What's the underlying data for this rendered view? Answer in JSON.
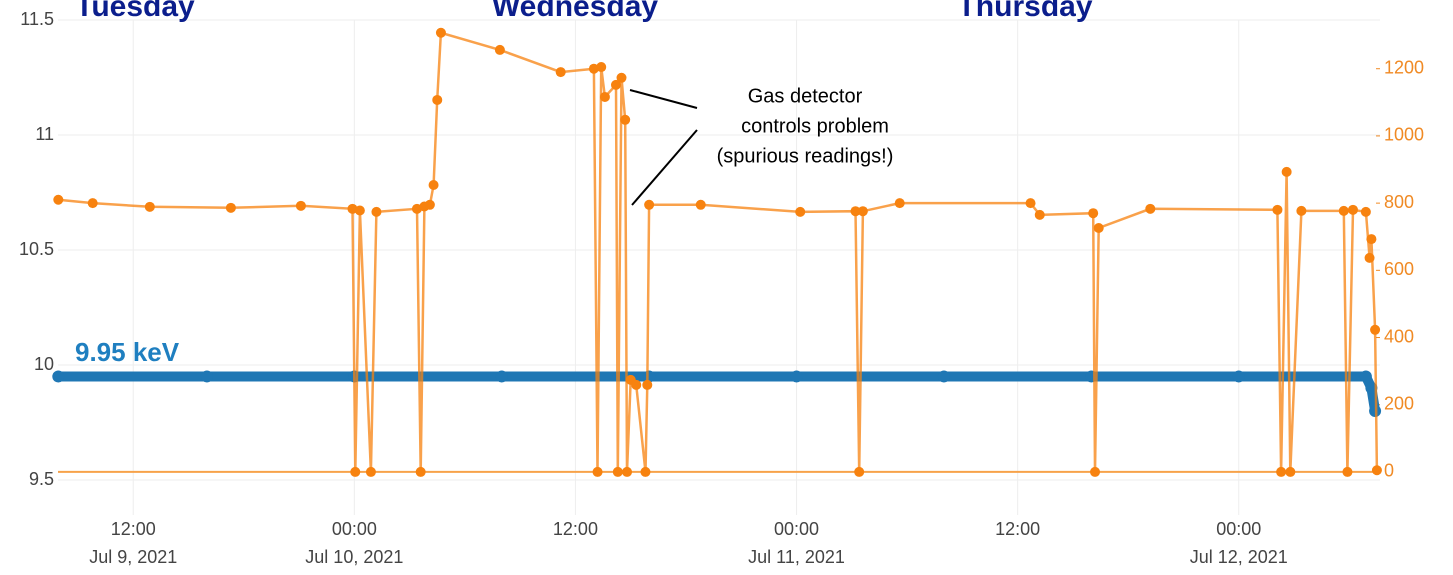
{
  "chart_data": {
    "type": "line",
    "xlim": [
      "2021-07-09 07:55",
      "2021-07-12 07:40"
    ],
    "xticks": [
      {
        "value": "2021-07-09 12:00",
        "label": [
          "12:00",
          "Jul 9, 2021"
        ]
      },
      {
        "value": "2021-07-10 00:00",
        "label": [
          "00:00",
          "Jul 10, 2021"
        ]
      },
      {
        "value": "2021-07-10 12:00",
        "label": [
          "12:00"
        ]
      },
      {
        "value": "2021-07-11 00:00",
        "label": [
          "00:00",
          "Jul 11, 2021"
        ]
      },
      {
        "value": "2021-07-11 12:00",
        "label": [
          "12:00"
        ]
      },
      {
        "value": "2021-07-12 00:00",
        "label": [
          "00:00",
          "Jul 12, 2021"
        ]
      }
    ],
    "ylim": [
      9.5,
      11.5
    ],
    "yticks": [
      9.5,
      10,
      10.5,
      11,
      11.5
    ],
    "y2lim": [
      -24,
      1345
    ],
    "y2ticks": [
      0,
      200,
      400,
      600,
      800,
      1000,
      1200
    ],
    "grid": true,
    "annotations": [
      "Tuesday",
      "Wednesday",
      "Thursday",
      "9.95 keV",
      [
        "Gas detector",
        "controls problem",
        "(spurious readings!)"
      ]
    ],
    "series": [
      {
        "color": "#1f77b4",
        "axis": "y",
        "x": [
          "2021-07-09 07:56",
          "2021-07-09 16:00",
          "2021-07-10 00:00",
          "2021-07-10 08:00",
          "2021-07-10 16:00",
          "2021-07-11 00:00",
          "2021-07-11 08:00",
          "2021-07-11 16:00",
          "2021-07-12 00:00",
          "2021-07-12 06:54",
          "2021-07-12 07:12",
          "2021-07-12 07:24"
        ],
        "values": [
          9.95,
          9.95,
          9.95,
          9.95,
          9.95,
          9.95,
          9.95,
          9.95,
          9.95,
          9.95,
          9.9,
          9.8
        ]
      },
      {
        "color": "#f7820f",
        "axis": "y2",
        "x": [
          "2021-07-09 07:56",
          "2021-07-09 09:48",
          "2021-07-09 12:54",
          "2021-07-09 17:18",
          "2021-07-09 21:06",
          "2021-07-09 23:54",
          "2021-07-10 00:03",
          "2021-07-10 00:18",
          "2021-07-10 00:54",
          "2021-07-10 01:12",
          "2021-07-10 03:24",
          "2021-07-10 03:36",
          "2021-07-10 03:48",
          "2021-07-10 04:06",
          "2021-07-10 04:18",
          "2021-07-10 04:30",
          "2021-07-10 04:42",
          "2021-07-10 07:54",
          "2021-07-10 11:12",
          "2021-07-10 13:00",
          "2021-07-10 13:12",
          "2021-07-10 13:24",
          "2021-07-10 13:36",
          "2021-07-10 14:12",
          "2021-07-10 14:18",
          "2021-07-10 14:30",
          "2021-07-10 14:42",
          "2021-07-10 14:48",
          "2021-07-10 15:00",
          "2021-07-10 15:18",
          "2021-07-10 15:48",
          "2021-07-10 15:54",
          "2021-07-10 16:00",
          "2021-07-10 18:48",
          "2021-07-11 00:12",
          "2021-07-11 03:12",
          "2021-07-11 03:24",
          "2021-07-11 03:36",
          "2021-07-11 05:36",
          "2021-07-11 12:42",
          "2021-07-11 13:12",
          "2021-07-11 16:06",
          "2021-07-11 16:12",
          "2021-07-11 16:24",
          "2021-07-11 19:12",
          "2021-07-12 02:06",
          "2021-07-12 02:18",
          "2021-07-12 02:36",
          "2021-07-12 02:48",
          "2021-07-12 03:24",
          "2021-07-12 05:42",
          "2021-07-12 05:54",
          "2021-07-12 06:12",
          "2021-07-12 06:54",
          "2021-07-12 07:06",
          "2021-07-12 07:12",
          "2021-07-12 07:24",
          "2021-07-12 07:30"
        ],
        "values": [
          810,
          800,
          789,
          786,
          792,
          783,
          0,
          778,
          0,
          774,
          783,
          0,
          790,
          795,
          854,
          1107,
          1307,
          1256,
          1190,
          1200,
          0,
          1205,
          1116,
          1152,
          0,
          1173,
          1048,
          0,
          274,
          259,
          0,
          259,
          795,
          795,
          774,
          776,
          0,
          776,
          800,
          800,
          765,
          770,
          0,
          726,
          783,
          780,
          0,
          893,
          0,
          777,
          777,
          0,
          780,
          774,
          637,
          693,
          423,
          5
        ]
      }
    ]
  }
}
